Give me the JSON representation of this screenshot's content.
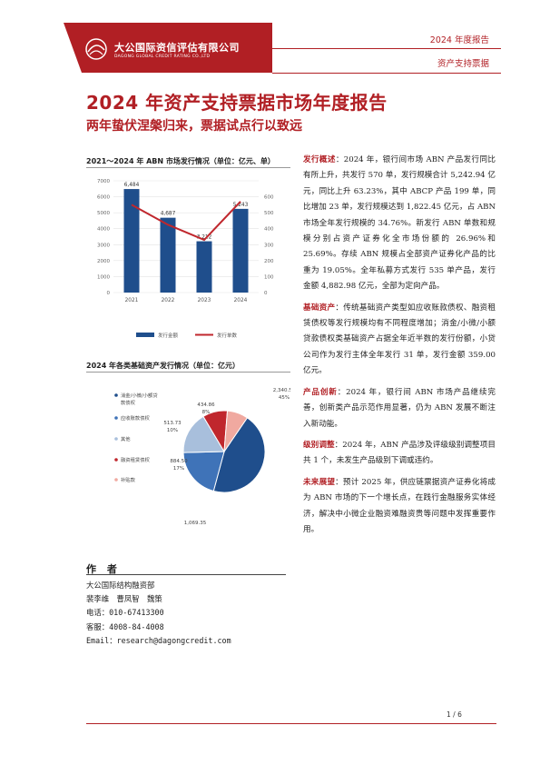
{
  "header": {
    "logo_name": "大公国际资信评估有限公司",
    "logo_en": "DAGONG GLOBAL CREDIT RATING CO.,LTD",
    "report_type": "2024 年度报告",
    "category": "资产支持票据",
    "brand_color": "#b11f24"
  },
  "title": "2024 年资产支持票据市场年度报告",
  "subtitle": "两年蛰伏涅槃归来，票据试点行以致远",
  "chart1": {
    "section_title": "2021～2024 年 ABN 市场发行情况（单位：亿元、单）"
  },
  "chart2": {
    "section_title": "2024 年各类基础资产发行情况（单位：亿元）"
  },
  "chart_data": [
    {
      "type": "bar",
      "categories": [
        "2021",
        "2022",
        "2023",
        "2024"
      ],
      "series": [
        {
          "name": "发行金额",
          "kind": "bar",
          "axis": "left",
          "color": "#1f4e8c",
          "values": [
            6484,
            4687,
            3212,
            5243
          ],
          "labels": [
            "6,484",
            "4,687",
            "3,212",
            "5,243"
          ]
        },
        {
          "name": "发行单数",
          "kind": "line",
          "axis": "right",
          "color": "#c0272d",
          "values": [
            550,
            425,
            330,
            570
          ]
        }
      ],
      "y_left": [
        0,
        7000
      ],
      "y_left_ticks": [
        "0",
        "1000",
        "2000",
        "3000",
        "4000",
        "5000",
        "6000",
        "7000"
      ],
      "y_right": [
        0,
        700
      ],
      "y_right_ticks": [
        "0",
        "100",
        "200",
        "300",
        "400",
        "500",
        "600"
      ],
      "legend": "bottom"
    },
    {
      "type": "pie",
      "slices": [
        {
          "name": "消金/小微/小额贷款债权",
          "value": 2340.5,
          "label": "2,340.50",
          "pct": "45%",
          "color": "#1f4e8c"
        },
        {
          "name": "应收账款债权",
          "value": 1069.35,
          "label": "1,069.35",
          "pct": "20%",
          "color": "#3f73b8"
        },
        {
          "name": "其他",
          "value": 884.5,
          "label": "884.50",
          "pct": "17%",
          "color": "#a8bfdc"
        },
        {
          "name": "融资租赁债权",
          "value": 513.73,
          "label": "513.73",
          "pct": "10%",
          "color": "#c0272d"
        },
        {
          "name": "补贴款",
          "value": 434.86,
          "label": "434.86",
          "pct": "8%",
          "color": "#f0a9a0"
        }
      ],
      "legend": "left"
    }
  ],
  "right_column": {
    "p1_kw": "发行概述",
    "p1_text": "：2024 年，银行间市场 ABN 产品发行同比有所上升，共发行 570 单，发行规模合计 5,242.94 亿元，同比上升 63.23%，其中 ABCP 产品 199 单，同比增加 23 单，发行规模达到 1,822.45 亿元，占 ABN 市场全年发行规模的 34.76%。新发行 ABN 单数和规模分别占资产证券化全市场份额的 26.96%和 25.69%。存续 ABN 规模占全部资产证券化产品的比重为 19.05%。全年私募方式发行 535 单产品，发行金额 4,882.98 亿元，全部为定向产品。",
    "p2_kw": "基础资产",
    "p2_text": "：传统基础资产类型如应收账款债权、融资租赁债权等发行规模均有不同程度增加；消金/小微/小额贷款债权类基础资产占据全年近半数的发行份额，小贷公司作为发行主体全年发行 31 单，发行金额 359.00 亿元。",
    "p3_kw": "产品创新",
    "p3_text": "：2024 年，银行间 ABN 市场产品继续完善，创新类产品示范作用显著，仍为 ABN 发展不断注入新动能。",
    "p4_kw": "级别调整",
    "p4_text": "：2024 年，ABN 产品涉及评级级别调整项目共 1 个，未发生产品级别下调或违约。",
    "p5_kw": "未来展望",
    "p5_text": "：预计 2025 年，供应链票据资产证券化将成为 ABN 市场的下一个增长点，在践行金融服务实体经济，解决中小微企业融资难融资贵等问题中发挥重要作用。"
  },
  "authors": {
    "title": "作 者",
    "dept": "大公国际结构融资部",
    "names": "裴李维　曹凤智　魏策",
    "phone": "电话：010-67413300",
    "service": "客服：4008-84-4008",
    "email": "Email：research@dagongcredit.com"
  },
  "page": "1 / 6"
}
